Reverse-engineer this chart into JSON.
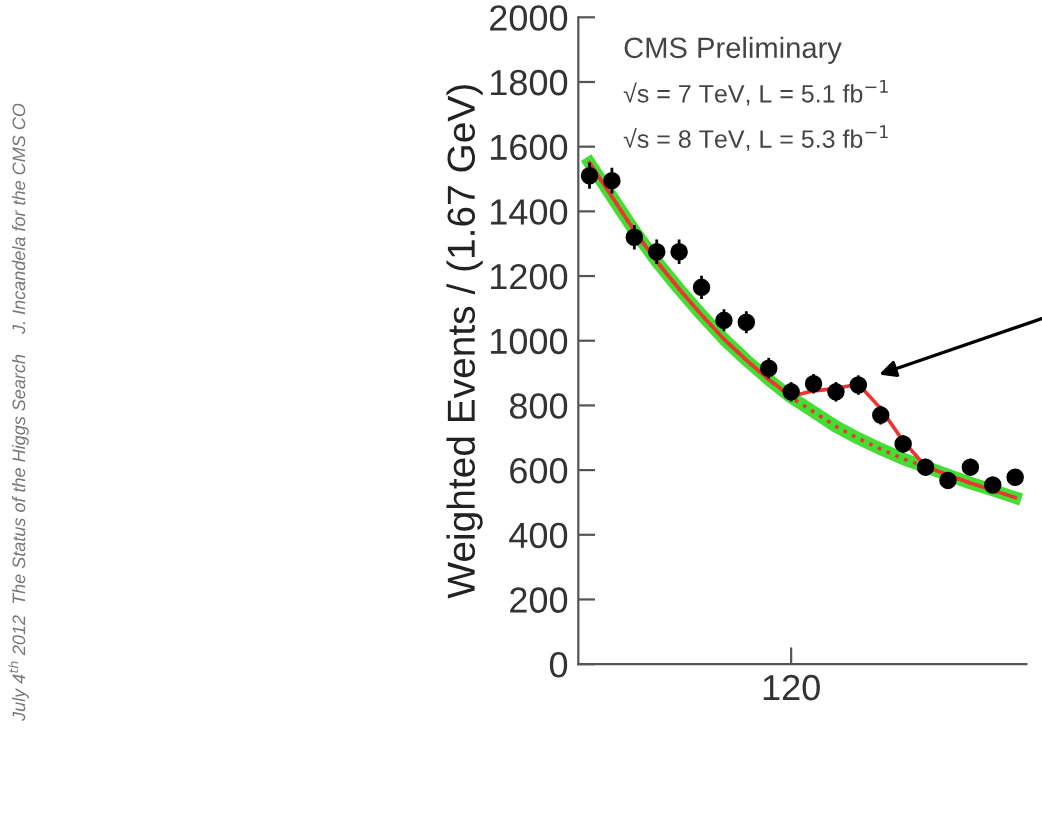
{
  "chart_data": {
    "type": "scatter",
    "ylabel": "Weighted Events / (1.67 GeV)",
    "categories": [
      null,
      null,
      null,
      null,
      null,
      null,
      null,
      null,
      null,
      "120",
      null,
      null,
      null,
      null,
      null,
      null,
      null,
      null,
      null,
      null
    ],
    "ylim": [
      0,
      2000
    ],
    "yticks": [
      0,
      200,
      400,
      600,
      800,
      1000,
      1200,
      1400,
      1600,
      1800,
      2000
    ],
    "grid": false,
    "legend": false,
    "annotations": [
      "CMS Preliminary",
      "√s = 7 TeV, L = 5.1 fb$^{−1}$",
      "√s = 8 TeV, L = 5.3 fb$^{−1}$",
      "July 4$^{th}$ 2012  The Status of the Higgs Search    J. Incandela for the CMS CO"
    ],
    "series": [
      {
        "type": "line",
        "color": "#44dd33",
        "line_style": "solid",
        "values": [
          1550,
          1445,
          1340,
          1245,
          1160,
          1080,
          1005,
          940,
          880,
          825,
          780,
          735,
          698,
          665,
          635,
          610,
          585,
          560,
          538,
          515
        ]
      },
      {
        "type": "line",
        "color": "#ee3333",
        "line_style": "dotted",
        "values": [
          1550,
          1445,
          1340,
          1245,
          1160,
          1080,
          1005,
          940,
          880,
          825,
          780,
          735,
          698,
          665,
          635,
          610,
          585,
          560,
          538,
          515
        ]
      },
      {
        "type": "line",
        "color": "#ee3333",
        "line_style": "solid",
        "values": [
          1550,
          1445,
          1340,
          1245,
          1160,
          1080,
          1005,
          940,
          880,
          828,
          845,
          852,
          866,
          790,
          690,
          612,
          585,
          560,
          538,
          515
        ]
      },
      {
        "color": "#000000",
        "marker": "circle",
        "values": [
          1510,
          1495,
          1320,
          1275,
          1275,
          1165,
          1063,
          1057,
          915,
          842,
          867,
          842,
          863,
          770,
          681,
          609,
          568,
          609,
          554,
          578
        ],
        "errors": [
          40,
          40,
          38,
          38,
          38,
          36,
          34,
          34,
          32,
          30,
          30,
          30,
          30,
          29,
          27,
          26,
          25,
          26,
          25,
          25
        ]
      }
    ]
  }
}
